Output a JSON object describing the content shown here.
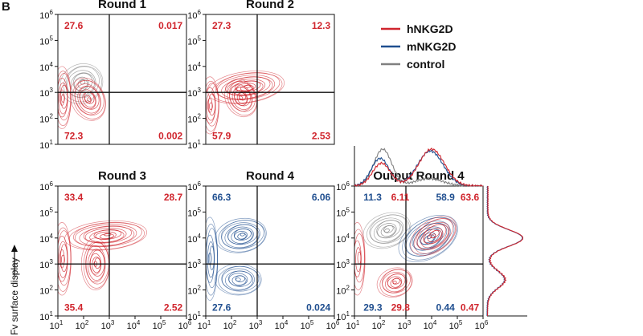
{
  "colors": {
    "h": "#d0252d",
    "m": "#1f4e8f",
    "c": "#808080",
    "axis": "#111111"
  },
  "chart_data": {
    "type": "contour",
    "figure_label": "B",
    "ylabel": "Fv surface display",
    "legend": [
      {
        "key": "h",
        "label": "hNKG2D"
      },
      {
        "key": "m",
        "label": "mNKG2D"
      },
      {
        "key": "c",
        "label": "control"
      }
    ],
    "axis_ticks": [
      "10",
      "10",
      "10",
      "10",
      "10",
      "10"
    ],
    "axis_exps": [
      "1",
      "2",
      "3",
      "4",
      "5",
      "6"
    ],
    "panels": [
      {
        "title": "Round 1",
        "series": "h",
        "quadrants": [
          {
            "v": "27.6",
            "s": "h"
          },
          {
            "v": "0.017",
            "s": "h"
          },
          {
            "v": "72.3",
            "s": "h"
          },
          {
            "v": "0.002",
            "s": "h"
          }
        ]
      },
      {
        "title": "Round 2",
        "series": "h",
        "quadrants": [
          {
            "v": "27.3",
            "s": "h"
          },
          {
            "v": "12.3",
            "s": "h"
          },
          {
            "v": "57.9",
            "s": "h"
          },
          {
            "v": "2.53",
            "s": "h"
          }
        ]
      },
      {
        "title": "Round 3",
        "series": "h",
        "quadrants": [
          {
            "v": "33.4",
            "s": "h"
          },
          {
            "v": "28.7",
            "s": "h"
          },
          {
            "v": "35.4",
            "s": "h"
          },
          {
            "v": "2.52",
            "s": "h"
          }
        ]
      },
      {
        "title": "Round 4",
        "series": "m",
        "quadrants": [
          {
            "v": "66.3",
            "s": "m"
          },
          {
            "v": "6.06",
            "s": "m"
          },
          {
            "v": "27.6",
            "s": "m"
          },
          {
            "v": "0.024",
            "s": "m"
          }
        ]
      },
      {
        "title": "Output Round 4",
        "series": "overlay",
        "quadrants": [
          {
            "v": "11.3",
            "s": "m"
          },
          {
            "v": "6.11",
            "s": "h"
          },
          {
            "v": "58.9",
            "s": "m"
          },
          {
            "v": "63.6",
            "s": "h"
          },
          {
            "v": "29.3",
            "s": "m"
          },
          {
            "v": "29.8",
            "s": "h"
          },
          {
            "v": "0.44",
            "s": "m"
          },
          {
            "v": "0.47",
            "s": "h"
          }
        ]
      }
    ],
    "gate_log": {
      "x": 3,
      "y": 3
    },
    "axis_range_log": [
      1,
      6
    ]
  }
}
